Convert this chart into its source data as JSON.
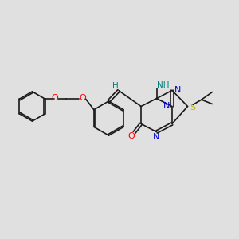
{
  "bg_color": "#e0e0e0",
  "bond_color": "#1a1a1a",
  "bond_lw": 1.2,
  "atom_colors": {
    "O": "#ff0000",
    "N": "#0000cc",
    "S": "#bbbb00",
    "H_gray": "#008080",
    "C": "#1a1a1a"
  },
  "figsize": [
    3.0,
    3.0
  ],
  "dpi": 100
}
